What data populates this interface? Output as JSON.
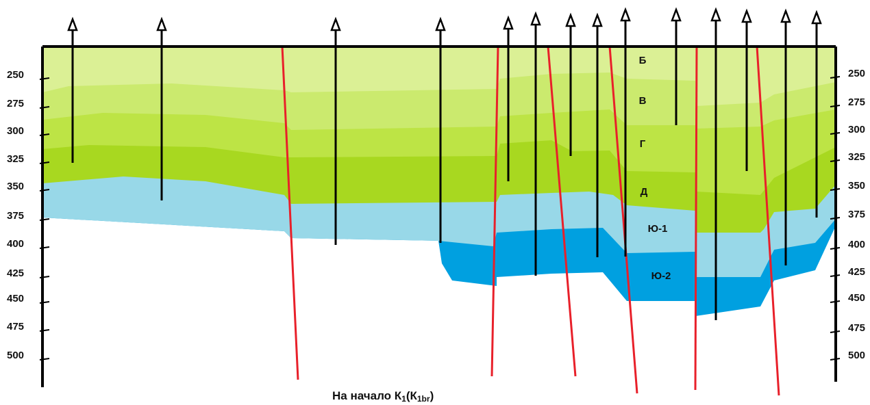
{
  "left_axis": {
    "labels": [
      250,
      275,
      300,
      325,
      350,
      375,
      400,
      425,
      450,
      475,
      500
    ]
  },
  "right_axis": {
    "labels": [
      250,
      275,
      300,
      325,
      350,
      375,
      400,
      425,
      450,
      475,
      500
    ]
  },
  "layers": [
    "Б",
    "В",
    "Г",
    "Д",
    "Ю-1",
    "Ю-2"
  ],
  "caption": {
    "text": "На начало К",
    "sub1": "1",
    "mid": "(К",
    "sub2": "1br",
    "end": ")"
  }
}
